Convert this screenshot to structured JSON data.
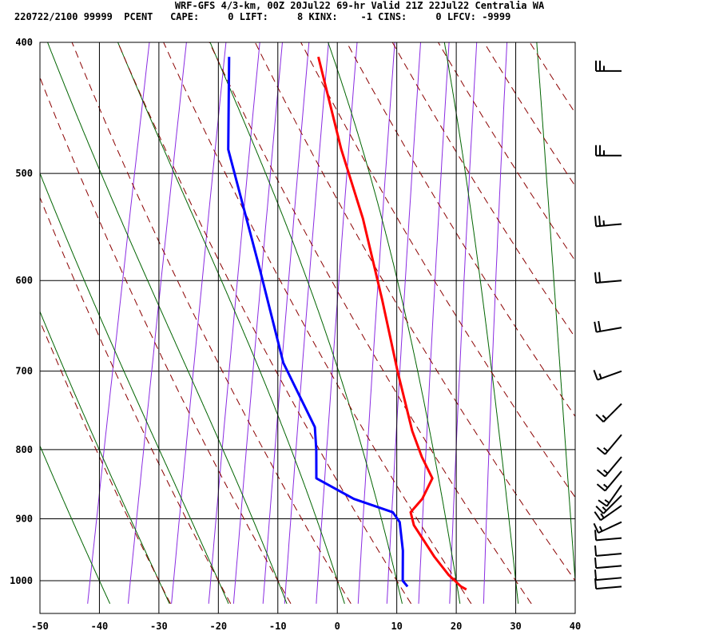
{
  "header": {
    "line1": "WRF-GFS 4/3-km, 00Z 20Jul22 69-hr Valid 21Z 22Jul22 Centralia WA",
    "line2": "220722/2100 99999  PCENT   CAPE:     0 LIFT:     8 KINX:    -1 CINS:     0 LFCV: -9999"
  },
  "chart_data": {
    "type": "line",
    "title": "",
    "xlabel": "",
    "ylabel": "",
    "x_axis": {
      "unit": "degC",
      "ticks": [
        -50,
        -40,
        -30,
        -20,
        -10,
        0,
        10,
        20,
        30,
        40
      ],
      "range": [
        -50,
        40
      ]
    },
    "y_axis": {
      "unit": "hPa",
      "scale": "log",
      "ticks": [
        400,
        500,
        600,
        700,
        800,
        900,
        1000
      ],
      "range": [
        400,
        1040
      ],
      "inverted": true
    },
    "skew_degC_per_decade_log_p": 46,
    "grid": true,
    "series": [
      {
        "color": "#ff0000",
        "points": [
          [
            410,
            -21
          ],
          [
            480,
            -14
          ],
          [
            540,
            -8
          ],
          [
            620,
            -2
          ],
          [
            700,
            3
          ],
          [
            775,
            7.5
          ],
          [
            810,
            10
          ],
          [
            840,
            12.5
          ],
          [
            870,
            11.5
          ],
          [
            890,
            10
          ],
          [
            910,
            11
          ],
          [
            960,
            15.5
          ],
          [
            990,
            18.5
          ],
          [
            1010,
            21
          ],
          [
            1015,
            22
          ]
        ]
      },
      {
        "color": "#0000ff",
        "points": [
          [
            410,
            -36
          ],
          [
            480,
            -33
          ],
          [
            590,
            -23.5
          ],
          [
            690,
            -16.5
          ],
          [
            770,
            -9
          ],
          [
            800,
            -8
          ],
          [
            840,
            -7
          ],
          [
            870,
            0
          ],
          [
            890,
            7
          ],
          [
            905,
            8.5
          ],
          [
            950,
            10
          ],
          [
            1000,
            11
          ],
          [
            1010,
            12
          ]
        ]
      }
    ],
    "isotherm_color": "#000000",
    "dry_adiabat_color": "#8b0000",
    "moist_adiabat_color": "#006400",
    "mixing_ratio_color": "#8a2be2",
    "wind_barb_color": "#000000",
    "wind_barbs": [
      {
        "p": 420,
        "dir": 270,
        "spd": 25
      },
      {
        "p": 485,
        "dir": 270,
        "spd": 25
      },
      {
        "p": 545,
        "dir": 265,
        "spd": 25
      },
      {
        "p": 600,
        "dir": 265,
        "spd": 20
      },
      {
        "p": 650,
        "dir": 260,
        "spd": 20
      },
      {
        "p": 700,
        "dir": 250,
        "spd": 15
      },
      {
        "p": 740,
        "dir": 225,
        "spd": 15
      },
      {
        "p": 780,
        "dir": 220,
        "spd": 15
      },
      {
        "p": 810,
        "dir": 220,
        "spd": 15
      },
      {
        "p": 830,
        "dir": 220,
        "spd": 15
      },
      {
        "p": 850,
        "dir": 215,
        "spd": 15
      },
      {
        "p": 865,
        "dir": 225,
        "spd": 15
      },
      {
        "p": 880,
        "dir": 235,
        "spd": 15
      },
      {
        "p": 905,
        "dir": 245,
        "spd": 15
      },
      {
        "p": 930,
        "dir": 265,
        "spd": 10
      },
      {
        "p": 955,
        "dir": 265,
        "spd": 10
      },
      {
        "p": 975,
        "dir": 265,
        "spd": 10
      },
      {
        "p": 995,
        "dir": 265,
        "spd": 10
      },
      {
        "p": 1010,
        "dir": 265,
        "spd": 10
      }
    ]
  }
}
